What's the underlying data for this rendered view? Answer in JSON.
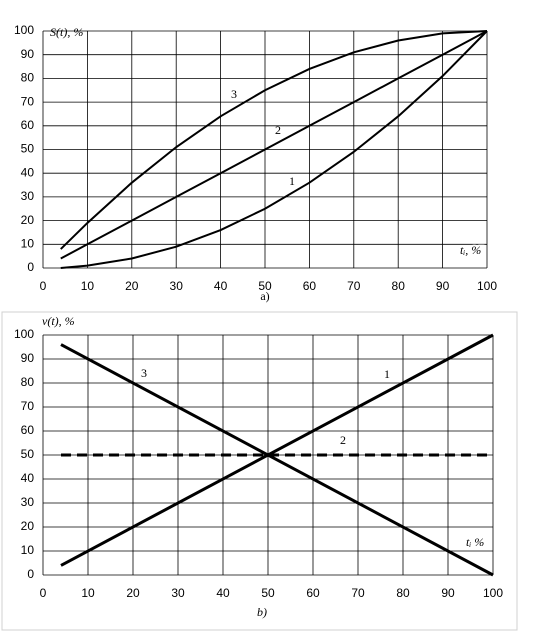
{
  "chart_data": [
    {
      "type": "line",
      "caption": "a)",
      "ylabel": "S(t), %",
      "xlabel": "tᵢ, %",
      "x": [
        4,
        10,
        20,
        30,
        40,
        50,
        60,
        70,
        80,
        90,
        100
      ],
      "series": [
        {
          "name": "1",
          "color": "#000000",
          "line_style": "solid",
          "values": [
            0,
            1,
            4,
            9,
            16,
            25,
            36,
            49,
            64,
            81,
            100
          ]
        },
        {
          "name": "2",
          "color": "#000000",
          "line_style": "solid",
          "values": [
            4,
            10,
            20,
            30,
            40,
            50,
            60,
            70,
            80,
            90,
            100
          ]
        },
        {
          "name": "3",
          "color": "#000000",
          "line_style": "solid",
          "values": [
            8,
            19,
            36,
            51,
            64,
            75,
            84,
            91,
            96,
            99,
            100
          ]
        }
      ],
      "xlim": [
        0,
        100
      ],
      "ylim": [
        0,
        100
      ],
      "xticks": [
        0,
        10,
        20,
        30,
        40,
        50,
        60,
        70,
        80,
        90,
        100
      ],
      "yticks": [
        0,
        10,
        20,
        30,
        40,
        50,
        60,
        70,
        80,
        90,
        100
      ],
      "grid": true
    },
    {
      "type": "line",
      "caption": "b)",
      "ylabel": "v(t), %",
      "xlabel": "tᵢ %",
      "x": [
        4,
        100
      ],
      "series": [
        {
          "name": "1",
          "color": "#000000",
          "line_style": "solid",
          "values": [
            4,
            100
          ]
        },
        {
          "name": "2",
          "color": "#000000",
          "line_style": "dashed",
          "values": [
            50,
            50
          ]
        },
        {
          "name": "3",
          "color": "#000000",
          "line_style": "solid",
          "values": [
            96,
            0
          ]
        }
      ],
      "xlim": [
        0,
        100
      ],
      "ylim": [
        0,
        100
      ],
      "xticks": [
        0,
        10,
        20,
        30,
        40,
        50,
        60,
        70,
        80,
        90,
        100
      ],
      "yticks": [
        0,
        10,
        20,
        30,
        40,
        50,
        60,
        70,
        80,
        90,
        100
      ],
      "grid": true
    }
  ]
}
